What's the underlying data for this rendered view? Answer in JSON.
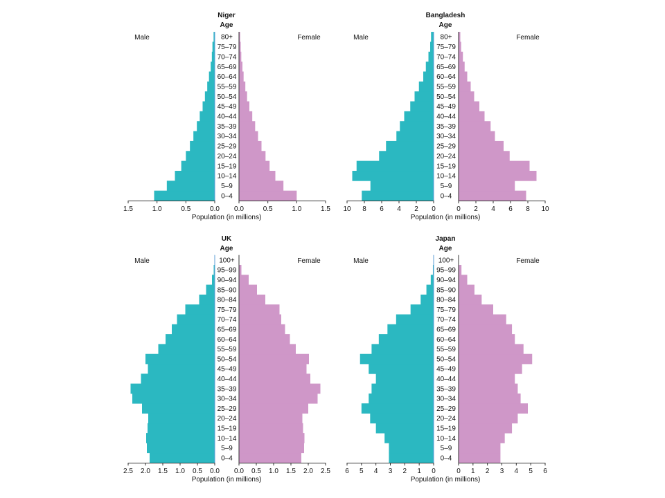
{
  "colors": {
    "male": "#2bb8c1",
    "female": "#cf97c8",
    "axis": "#333333",
    "center_line": "#5e9cd6"
  },
  "chart_data": [
    {
      "type": "bar",
      "title": "Niger",
      "age_header": "Age",
      "male_label": "Male",
      "female_label": "Female",
      "xlabel": "Population (in millions)",
      "xlim": [
        0,
        1.5
      ],
      "x_ticks_male": [
        "1.5",
        "1.0",
        "0.5",
        "0.0"
      ],
      "x_ticks_female": [
        "0.0",
        "0.5",
        "1.0",
        "1.5"
      ],
      "categories": [
        "0–4",
        "5–9",
        "10–14",
        "15–19",
        "20–24",
        "25–29",
        "30–34",
        "35–39",
        "40–44",
        "45–49",
        "50–54",
        "55–59",
        "60–64",
        "65–69",
        "70–74",
        "75–79",
        "80+"
      ],
      "series": [
        {
          "name": "Male",
          "values": [
            1.05,
            0.83,
            0.69,
            0.58,
            0.5,
            0.43,
            0.37,
            0.31,
            0.26,
            0.21,
            0.17,
            0.13,
            0.1,
            0.07,
            0.05,
            0.04,
            0.02
          ]
        },
        {
          "name": "Female",
          "values": [
            1.0,
            0.77,
            0.63,
            0.53,
            0.46,
            0.39,
            0.33,
            0.28,
            0.23,
            0.18,
            0.14,
            0.11,
            0.08,
            0.06,
            0.04,
            0.03,
            0.02
          ]
        }
      ]
    },
    {
      "type": "bar",
      "title": "Bangladesh",
      "age_header": "Age",
      "male_label": "Male",
      "female_label": "Female",
      "xlabel": "Population (in millions)",
      "xlim": [
        0,
        10
      ],
      "x_ticks_male": [
        "10",
        "8",
        "6",
        "4",
        "2",
        "0"
      ],
      "x_ticks_female": [
        "0",
        "2",
        "4",
        "6",
        "8",
        "10"
      ],
      "categories": [
        "0–4",
        "5–9",
        "10–14",
        "15–19",
        "20–24",
        "25–29",
        "30–34",
        "35–39",
        "40–44",
        "45–49",
        "50–54",
        "55–59",
        "60–64",
        "65–69",
        "70–74",
        "75–79",
        "80+"
      ],
      "series": [
        {
          "name": "Male",
          "values": [
            8.3,
            7.3,
            9.4,
            8.9,
            6.3,
            5.5,
            4.3,
            3.9,
            3.4,
            2.7,
            2.2,
            1.7,
            1.2,
            0.9,
            0.6,
            0.4,
            0.3
          ]
        },
        {
          "name": "Female",
          "values": [
            7.8,
            6.5,
            9.0,
            8.2,
            5.9,
            5.2,
            4.2,
            3.7,
            3.0,
            2.4,
            1.8,
            1.4,
            1.0,
            0.7,
            0.5,
            0.3,
            0.2
          ]
        }
      ]
    },
    {
      "type": "bar",
      "title": "UK",
      "age_header": "Age",
      "male_label": "Male",
      "female_label": "Female",
      "xlabel": "Population (in millions)",
      "xlim": [
        0,
        2.5
      ],
      "x_ticks_male": [
        "2.5",
        "2.0",
        "1.5",
        "1.0",
        "0.5",
        "0.0"
      ],
      "x_ticks_female": [
        "0.0",
        "0.5",
        "1.0",
        "1.5",
        "2.0",
        "2.5"
      ],
      "categories": [
        "0–4",
        "5–9",
        "10–14",
        "15–19",
        "20–24",
        "25–29",
        "30–34",
        "35–39",
        "40–44",
        "45–49",
        "50–54",
        "55–59",
        "60–64",
        "65–69",
        "70–74",
        "75–79",
        "80–84",
        "85–90",
        "90–94",
        "95–99",
        "100+"
      ],
      "series": [
        {
          "name": "Male",
          "values": [
            1.88,
            1.96,
            1.98,
            1.94,
            1.92,
            2.1,
            2.38,
            2.43,
            2.13,
            1.93,
            2.0,
            1.63,
            1.42,
            1.24,
            1.09,
            0.85,
            0.45,
            0.25,
            0.08,
            0.03,
            0.01
          ]
        },
        {
          "name": "Female",
          "values": [
            1.8,
            1.88,
            1.89,
            1.85,
            1.83,
            2.0,
            2.27,
            2.35,
            2.06,
            1.95,
            2.02,
            1.64,
            1.47,
            1.33,
            1.22,
            1.17,
            0.76,
            0.52,
            0.28,
            0.07,
            0.01
          ]
        }
      ]
    },
    {
      "type": "bar",
      "title": "Japan",
      "age_header": "Age",
      "male_label": "Male",
      "female_label": "Female",
      "xlabel": "Population (in millions)",
      "xlim": [
        0,
        6
      ],
      "x_ticks_male": [
        "6",
        "5",
        "4",
        "3",
        "2",
        "1",
        "0"
      ],
      "x_ticks_female": [
        "0",
        "1",
        "2",
        "3",
        "4",
        "5",
        "6"
      ],
      "categories": [
        "0–4",
        "5–9",
        "10–14",
        "15–19",
        "20–24",
        "25–29",
        "30–34",
        "35–39",
        "40–44",
        "45–49",
        "50–54",
        "55–59",
        "60–64",
        "65–69",
        "70–74",
        "75–79",
        "80–84",
        "85–90",
        "90–94",
        "95–99",
        "100+"
      ],
      "series": [
        {
          "name": "Male",
          "values": [
            3.1,
            3.1,
            3.4,
            4.0,
            4.4,
            5.0,
            4.5,
            4.3,
            4.0,
            4.5,
            5.1,
            4.3,
            3.8,
            3.2,
            2.6,
            1.6,
            0.9,
            0.5,
            0.2,
            0.05,
            0.01
          ]
        },
        {
          "name": "Female",
          "values": [
            2.9,
            2.9,
            3.2,
            3.7,
            4.1,
            4.8,
            4.3,
            4.1,
            3.9,
            4.4,
            5.1,
            4.5,
            3.9,
            3.7,
            3.3,
            2.4,
            1.6,
            1.1,
            0.6,
            0.2,
            0.02
          ]
        }
      ]
    }
  ]
}
